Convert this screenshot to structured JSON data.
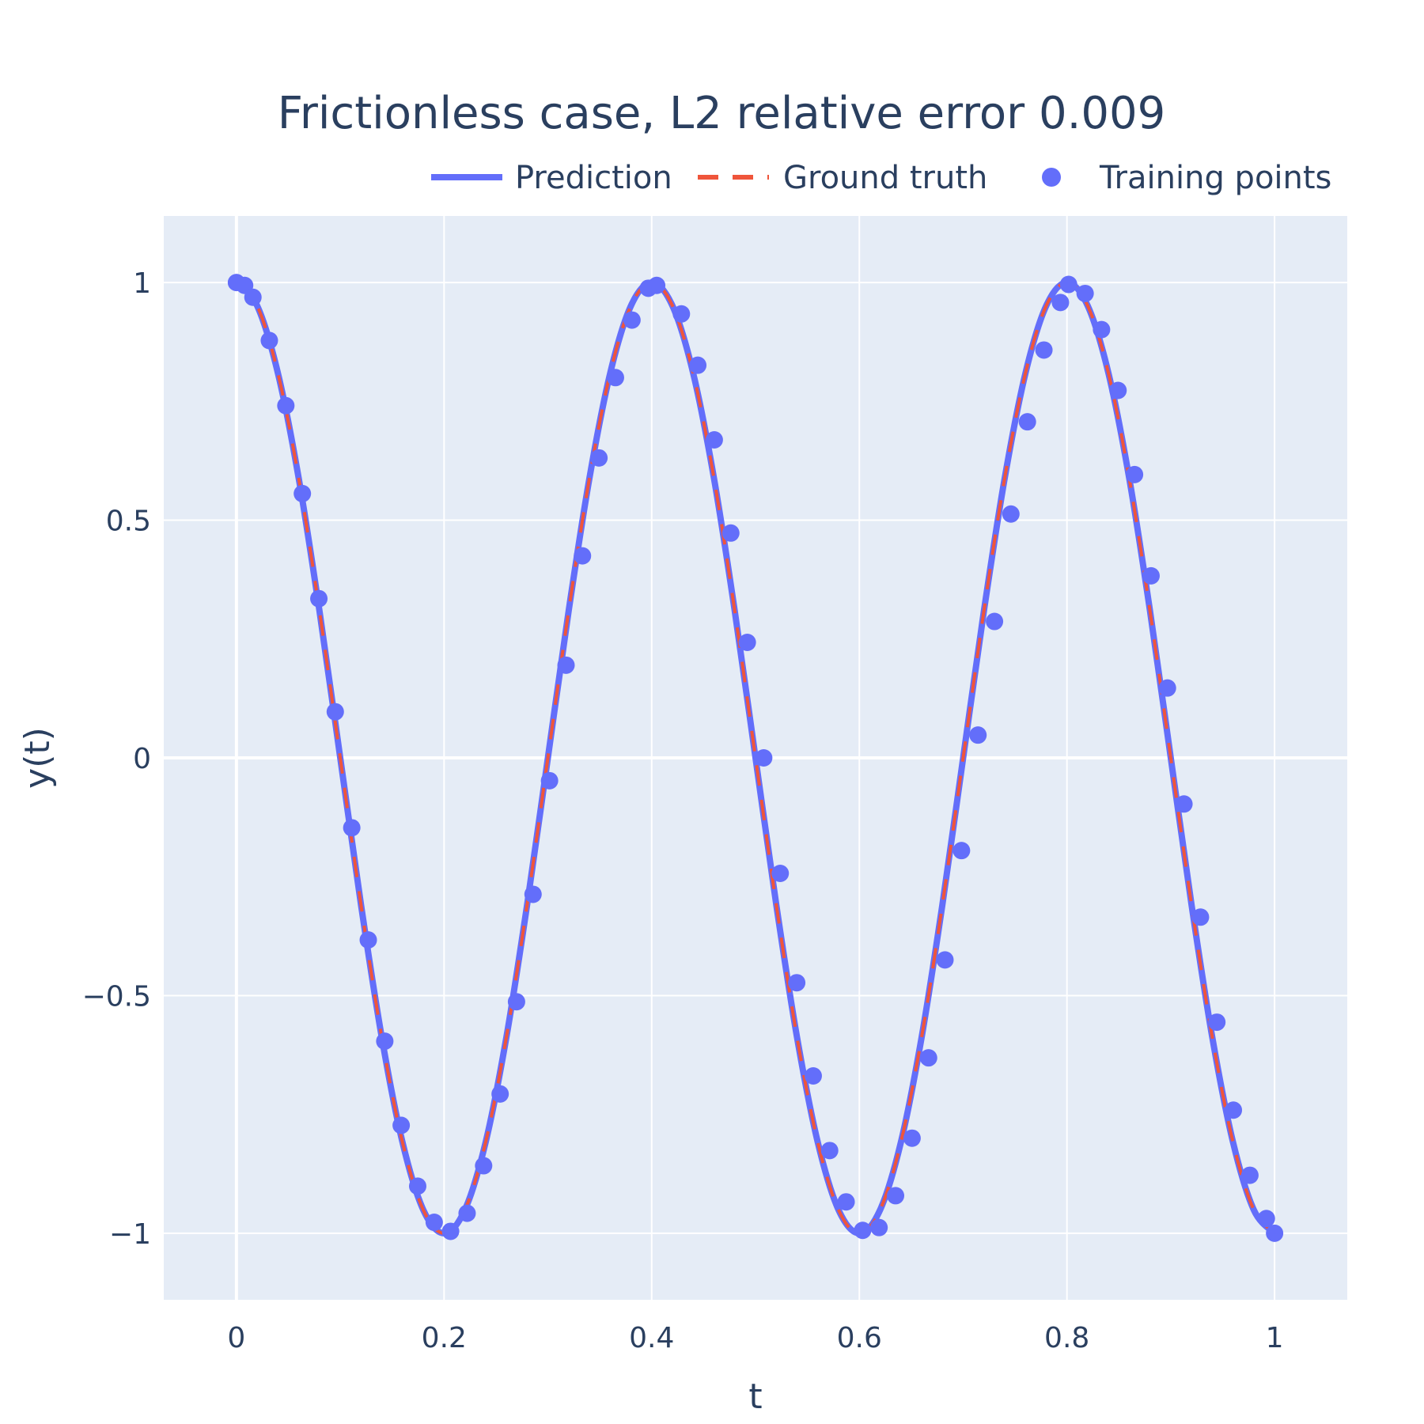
{
  "chart_data": {
    "type": "line",
    "title": "Frictionless case, L2 relative error 0.009",
    "xlabel": "t",
    "ylabel": "y(t)",
    "xlim": [
      -0.07,
      1.07
    ],
    "ylim": [
      -1.14,
      1.14
    ],
    "xticks": [
      0,
      0.2,
      0.4,
      0.6,
      0.8,
      1
    ],
    "xtick_labels": [
      "0",
      "0.2",
      "0.4",
      "0.6",
      "0.8",
      "1"
    ],
    "yticks": [
      -1,
      -0.5,
      0,
      0.5,
      1
    ],
    "ytick_labels": [
      "−1",
      "−0.5",
      "0",
      "0.5",
      "1"
    ],
    "grid": true,
    "legend_position": "top-right",
    "series": [
      {
        "name": "Prediction",
        "style": "solid",
        "color": "#636efa",
        "x": [
          0,
          0.02,
          0.04,
          0.06,
          0.08,
          0.1,
          0.12,
          0.14,
          0.16,
          0.18,
          0.2,
          0.22,
          0.24,
          0.26,
          0.28,
          0.3,
          0.32,
          0.34,
          0.36,
          0.38,
          0.4,
          0.42,
          0.44,
          0.46,
          0.48,
          0.5,
          0.52,
          0.54,
          0.56,
          0.58,
          0.6,
          0.62,
          0.64,
          0.66,
          0.68,
          0.7,
          0.72,
          0.74,
          0.76,
          0.78,
          0.8,
          0.82,
          0.84,
          0.86,
          0.88,
          0.9,
          0.92,
          0.94,
          0.96,
          0.98,
          1.0
        ],
        "y": [
          1.0,
          0.951,
          0.809,
          0.588,
          0.309,
          0.0,
          -0.309,
          -0.588,
          -0.809,
          -0.951,
          -1.0,
          -0.951,
          -0.809,
          -0.588,
          -0.309,
          0.0,
          0.309,
          0.588,
          0.809,
          0.951,
          1.0,
          0.951,
          0.809,
          0.588,
          0.309,
          0.0,
          -0.309,
          -0.588,
          -0.809,
          -0.951,
          -1.0,
          -0.951,
          -0.809,
          -0.588,
          -0.309,
          0.0,
          0.309,
          0.588,
          0.809,
          0.951,
          1.0,
          0.951,
          0.809,
          0.588,
          0.309,
          0.0,
          -0.309,
          -0.588,
          -0.809,
          -0.951,
          -1.0
        ]
      },
      {
        "name": "Ground truth",
        "style": "dash",
        "color": "#ef553b",
        "x": [
          0,
          0.02,
          0.04,
          0.06,
          0.08,
          0.1,
          0.12,
          0.14,
          0.16,
          0.18,
          0.2,
          0.22,
          0.24,
          0.26,
          0.28,
          0.3,
          0.32,
          0.34,
          0.36,
          0.38,
          0.4,
          0.42,
          0.44,
          0.46,
          0.48,
          0.5,
          0.52,
          0.54,
          0.56,
          0.58,
          0.6,
          0.62,
          0.64,
          0.66,
          0.68,
          0.7,
          0.72,
          0.74,
          0.76,
          0.78,
          0.8,
          0.82,
          0.84,
          0.86,
          0.88,
          0.9,
          0.92,
          0.94,
          0.96,
          0.98,
          1.0
        ],
        "y": [
          1.0,
          0.951,
          0.809,
          0.588,
          0.309,
          0.0,
          -0.309,
          -0.588,
          -0.809,
          -0.951,
          -1.0,
          -0.951,
          -0.809,
          -0.588,
          -0.309,
          0.0,
          0.309,
          0.588,
          0.809,
          0.951,
          1.0,
          0.951,
          0.809,
          0.588,
          0.309,
          0.0,
          -0.309,
          -0.588,
          -0.809,
          -0.951,
          -1.0,
          -0.951,
          -0.809,
          -0.588,
          -0.309,
          0.0,
          0.309,
          0.588,
          0.809,
          0.951,
          1.0,
          0.951,
          0.809,
          0.588,
          0.309,
          0.0,
          -0.309,
          -0.588,
          -0.809,
          -0.951,
          -1.0
        ]
      },
      {
        "name": "Training points",
        "style": "markers",
        "color": "#636efa",
        "x": [
          0.0,
          0.0079,
          0.0159,
          0.0317,
          0.0476,
          0.0635,
          0.0794,
          0.0952,
          0.1111,
          0.127,
          0.1429,
          0.1587,
          0.1746,
          0.1905,
          0.2063,
          0.2222,
          0.2381,
          0.254,
          0.2698,
          0.2857,
          0.3016,
          0.3175,
          0.3333,
          0.3492,
          0.3651,
          0.381,
          0.3968,
          0.4048,
          0.4286,
          0.4444,
          0.4603,
          0.4762,
          0.4921,
          0.5079,
          0.5238,
          0.5397,
          0.5556,
          0.5714,
          0.5873,
          0.6032,
          0.619,
          0.6349,
          0.6508,
          0.6667,
          0.6825,
          0.6984,
          0.7143,
          0.7302,
          0.746,
          0.7619,
          0.7778,
          0.7937,
          0.8016,
          0.8175,
          0.8333,
          0.8492,
          0.8651,
          0.881,
          0.8968,
          0.9127,
          0.9286,
          0.9444,
          0.9603,
          0.9762,
          0.9921,
          1.0
        ],
        "y": [
          1.0,
          0.994,
          0.969,
          0.878,
          0.741,
          0.556,
          0.335,
          0.097,
          -0.147,
          -0.383,
          -0.596,
          -0.773,
          -0.901,
          -0.977,
          -0.996,
          -0.958,
          -0.858,
          -0.707,
          -0.513,
          -0.287,
          -0.048,
          0.195,
          0.425,
          0.631,
          0.8,
          0.921,
          0.988,
          0.994,
          0.934,
          0.826,
          0.669,
          0.473,
          0.243,
          0.0,
          -0.243,
          -0.473,
          -0.669,
          -0.826,
          -0.934,
          -0.994,
          -0.988,
          -0.921,
          -0.8,
          -0.631,
          -0.425,
          -0.195,
          0.048,
          0.287,
          0.513,
          0.707,
          0.858,
          0.958,
          0.996,
          0.977,
          0.901,
          0.773,
          0.596,
          0.383,
          0.147,
          -0.097,
          -0.335,
          -0.556,
          -0.741,
          -0.878,
          -0.969,
          -1.0
        ]
      }
    ]
  },
  "colors": {
    "plot_background": "#e5ecf6",
    "grid": "#ffffff",
    "text": "#2a3f5f"
  }
}
